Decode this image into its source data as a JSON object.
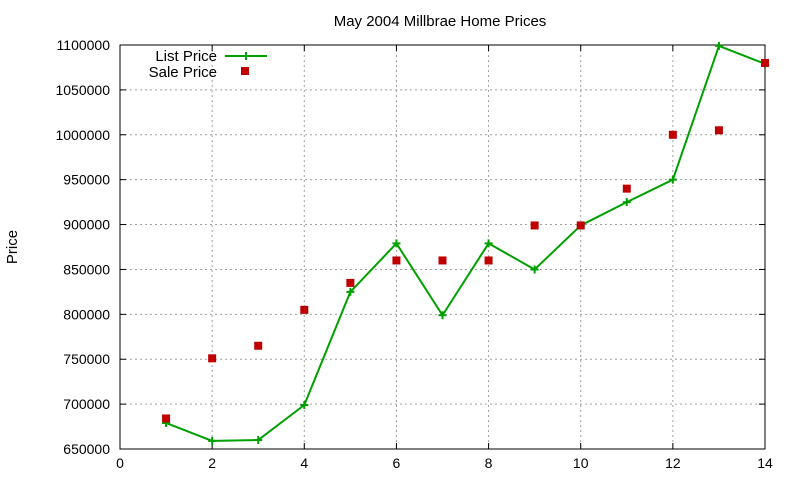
{
  "chart_data": {
    "type": "line",
    "title": "May 2004 Millbrae Home Prices",
    "xlabel": "",
    "ylabel": "Price",
    "xlim": [
      0,
      14
    ],
    "ylim": [
      650000,
      1100000
    ],
    "xticks": [
      0,
      2,
      4,
      6,
      8,
      10,
      12,
      14
    ],
    "yticks": [
      650000,
      700000,
      750000,
      800000,
      850000,
      900000,
      950000,
      1000000,
      1050000,
      1100000
    ],
    "grid": true,
    "legend_position": "top-left",
    "series": [
      {
        "name": "List Price",
        "style": "lines-points",
        "color": "#00a000",
        "x": [
          1,
          2,
          3,
          4,
          5,
          6,
          7,
          8,
          9,
          10,
          11,
          12,
          13,
          14
        ],
        "y": [
          679000,
          659000,
          660000,
          699000,
          825000,
          879000,
          799000,
          879000,
          850000,
          899000,
          925000,
          950000,
          1099000,
          1079000
        ]
      },
      {
        "name": "Sale Price",
        "style": "points",
        "color": "#c00000",
        "x": [
          1,
          2,
          3,
          4,
          5,
          6,
          7,
          8,
          9,
          10,
          11,
          12,
          13,
          14
        ],
        "y": [
          684000,
          751000,
          765000,
          805000,
          835000,
          860000,
          860000,
          860000,
          899000,
          899000,
          940000,
          1000000,
          1005000,
          1080000
        ]
      }
    ]
  }
}
